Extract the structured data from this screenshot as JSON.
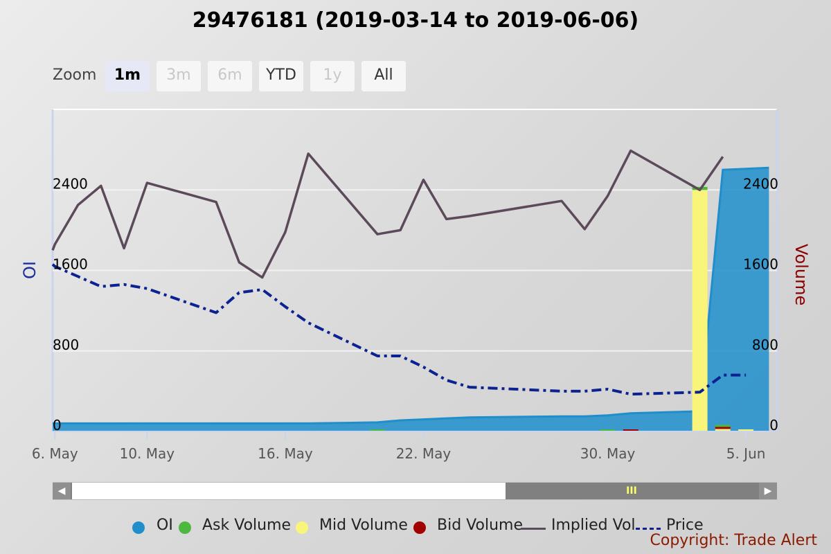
{
  "title": "29476181 (2019-03-14 to 2019-06-06)",
  "zoom": {
    "label": "Zoom",
    "buttons": [
      {
        "label": "1m",
        "state": "active"
      },
      {
        "label": "3m",
        "state": "disabled"
      },
      {
        "label": "6m",
        "state": "disabled"
      },
      {
        "label": "YTD",
        "state": "normal"
      },
      {
        "label": "1y",
        "state": "disabled"
      },
      {
        "label": "All",
        "state": "normal"
      }
    ]
  },
  "colors": {
    "oi": "#1f8ecb",
    "ask_volume": "#4cb83e",
    "mid_volume": "#f8f57a",
    "bid_volume": "#a30000",
    "implied_vol": "#5b4a5a",
    "price": "#0b2290"
  },
  "legend": [
    {
      "label": "OI",
      "kind": "dot",
      "color": "#1f8ecb"
    },
    {
      "label": "Ask Volume",
      "kind": "dot",
      "color": "#4cb83e"
    },
    {
      "label": "Mid Volume",
      "kind": "dot",
      "color": "#f8f57a"
    },
    {
      "label": "Bid Volume",
      "kind": "dot",
      "color": "#a30000"
    },
    {
      "label": "Implied Vol",
      "kind": "line",
      "color": "#5b4a5a"
    },
    {
      "label": "Price",
      "kind": "dash",
      "color": "#0b2290"
    }
  ],
  "copyright": "Copyright: Trade Alert",
  "chart_data": {
    "type": "line",
    "x_axis": {
      "type": "date",
      "range": [
        "2019-05-06",
        "2019-06-06"
      ],
      "tick_labels": [
        {
          "date": "2019-05-06",
          "label": "6. May"
        },
        {
          "date": "2019-05-10",
          "label": "10. May"
        },
        {
          "date": "2019-05-16",
          "label": "16. May"
        },
        {
          "date": "2019-05-22",
          "label": "22. May"
        },
        {
          "date": "2019-05-30",
          "label": "30. May"
        },
        {
          "date": "2019-06-05",
          "label": "5. Jun"
        }
      ]
    },
    "y_left": {
      "title": "OI",
      "ticks": [
        0,
        800,
        1600,
        2400
      ],
      "range": [
        0,
        3200
      ]
    },
    "y_right": {
      "title": "Volume",
      "ticks": [
        0,
        800,
        1600,
        2400
      ],
      "range": [
        0,
        3200
      ]
    },
    "grid": true,
    "legend_position": "bottom",
    "series": [
      {
        "name": "OI",
        "kind": "area",
        "axis": "left",
        "points": [
          [
            "2019-05-06",
            80
          ],
          [
            "2019-05-07",
            80
          ],
          [
            "2019-05-08",
            80
          ],
          [
            "2019-05-09",
            80
          ],
          [
            "2019-05-10",
            80
          ],
          [
            "2019-05-13",
            80
          ],
          [
            "2019-05-14",
            80
          ],
          [
            "2019-05-15",
            80
          ],
          [
            "2019-05-16",
            80
          ],
          [
            "2019-05-17",
            80
          ],
          [
            "2019-05-20",
            90
          ],
          [
            "2019-05-21",
            110
          ],
          [
            "2019-05-22",
            120
          ],
          [
            "2019-05-23",
            130
          ],
          [
            "2019-05-24",
            140
          ],
          [
            "2019-05-28",
            150
          ],
          [
            "2019-05-29",
            150
          ],
          [
            "2019-05-30",
            160
          ],
          [
            "2019-05-31",
            180
          ],
          [
            "2019-06-03",
            200
          ],
          [
            "2019-06-04",
            2600
          ],
          [
            "2019-06-05",
            2610
          ],
          [
            "2019-06-06",
            2620
          ]
        ]
      },
      {
        "name": "Ask Volume",
        "kind": "bar",
        "axis": "right",
        "points": [
          [
            "2019-05-20",
            5
          ],
          [
            "2019-05-30",
            5
          ],
          [
            "2019-06-03",
            30
          ],
          [
            "2019-06-04",
            20
          ]
        ]
      },
      {
        "name": "Mid Volume",
        "kind": "bar",
        "axis": "right",
        "points": [
          [
            "2019-06-03",
            2400
          ],
          [
            "2019-06-04",
            25
          ],
          [
            "2019-06-05",
            10
          ]
        ]
      },
      {
        "name": "Bid Volume",
        "kind": "bar",
        "axis": "right",
        "points": [
          [
            "2019-05-31",
            10
          ],
          [
            "2019-06-04",
            10
          ]
        ]
      },
      {
        "name": "Implied Vol",
        "kind": "line",
        "axis": "hidden",
        "points": [
          [
            "2019-05-06",
            1860
          ],
          [
            "2019-05-07",
            2250
          ],
          [
            "2019-05-08",
            2440
          ],
          [
            "2019-05-09",
            1820
          ],
          [
            "2019-05-10",
            2470
          ],
          [
            "2019-05-13",
            2280
          ],
          [
            "2019-05-14",
            1680
          ],
          [
            "2019-05-15",
            1530
          ],
          [
            "2019-05-16",
            1980
          ],
          [
            "2019-05-17",
            2760
          ],
          [
            "2019-05-20",
            1960
          ],
          [
            "2019-05-21",
            2000
          ],
          [
            "2019-05-22",
            2500
          ],
          [
            "2019-05-23",
            2110
          ],
          [
            "2019-05-24",
            2140
          ],
          [
            "2019-05-28",
            2290
          ],
          [
            "2019-05-29",
            2010
          ],
          [
            "2019-05-30",
            2340
          ],
          [
            "2019-05-31",
            2790
          ],
          [
            "2019-06-03",
            2400
          ],
          [
            "2019-06-04",
            2730
          ]
        ]
      },
      {
        "name": "Price",
        "kind": "dash",
        "axis": "hidden",
        "points": [
          [
            "2019-05-06",
            1640
          ],
          [
            "2019-05-07",
            1540
          ],
          [
            "2019-05-08",
            1440
          ],
          [
            "2019-05-09",
            1460
          ],
          [
            "2019-05-10",
            1420
          ],
          [
            "2019-05-13",
            1180
          ],
          [
            "2019-05-14",
            1380
          ],
          [
            "2019-05-15",
            1410
          ],
          [
            "2019-05-16",
            1240
          ],
          [
            "2019-05-17",
            1080
          ],
          [
            "2019-05-20",
            750
          ],
          [
            "2019-05-21",
            750
          ],
          [
            "2019-05-22",
            640
          ],
          [
            "2019-05-23",
            510
          ],
          [
            "2019-05-24",
            440
          ],
          [
            "2019-05-28",
            400
          ],
          [
            "2019-05-29",
            400
          ],
          [
            "2019-05-30",
            420
          ],
          [
            "2019-05-31",
            370
          ],
          [
            "2019-06-03",
            390
          ],
          [
            "2019-06-04",
            560
          ],
          [
            "2019-06-05",
            560
          ]
        ]
      }
    ]
  }
}
